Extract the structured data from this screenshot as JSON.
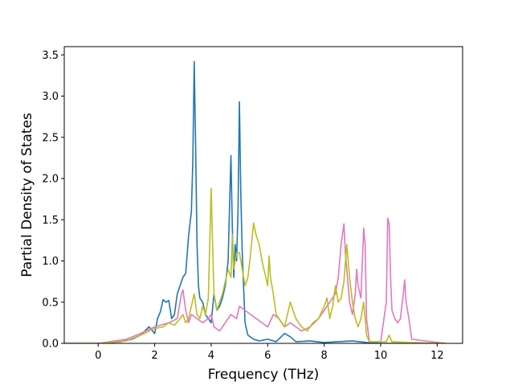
{
  "chart_data": {
    "type": "line",
    "title": "",
    "xlabel": "Frequency (THz)",
    "ylabel": "Partial Density of States",
    "xlim": [
      -1.2,
      12.9
    ],
    "ylim": [
      0,
      3.6
    ],
    "xticks": [
      0,
      2,
      4,
      6,
      8,
      10,
      12
    ],
    "xtick_labels": [
      "0",
      "2",
      "4",
      "6",
      "8",
      "10",
      "12"
    ],
    "yticks": [
      0.0,
      0.5,
      1.0,
      1.5,
      2.0,
      2.5,
      3.0,
      3.5
    ],
    "ytick_labels": [
      "0.0",
      "0.5",
      "1.0",
      "1.5",
      "2.0",
      "2.5",
      "3.0",
      "3.5"
    ],
    "grid": false,
    "legend": "none",
    "series": [
      {
        "color": "#1f77b4",
        "x": [
          -1.2,
          0,
          0.8,
          1.2,
          1.5,
          1.8,
          2.0,
          2.1,
          2.2,
          2.3,
          2.4,
          2.5,
          2.6,
          2.7,
          2.8,
          2.9,
          3.0,
          3.1,
          3.2,
          3.3,
          3.35,
          3.4,
          3.45,
          3.5,
          3.55,
          3.6,
          3.7,
          3.8,
          3.9,
          4.0,
          4.1,
          4.2,
          4.3,
          4.4,
          4.5,
          4.6,
          4.7,
          4.75,
          4.8,
          4.85,
          4.9,
          4.95,
          5.0,
          5.05,
          5.1,
          5.2,
          5.3,
          5.5,
          5.7,
          6.0,
          6.3,
          6.6,
          6.8,
          7.0,
          7.5,
          8.0,
          8.5,
          9.0,
          9.5,
          10.0,
          12.3
        ],
        "y": [
          0,
          0,
          0.02,
          0.05,
          0.1,
          0.2,
          0.12,
          0.3,
          0.38,
          0.53,
          0.5,
          0.52,
          0.3,
          0.35,
          0.6,
          0.7,
          0.8,
          0.85,
          1.3,
          1.6,
          2.2,
          3.42,
          2.4,
          1.2,
          0.7,
          0.55,
          0.5,
          0.35,
          0.3,
          0.25,
          0.6,
          0.4,
          0.45,
          0.55,
          0.7,
          1.0,
          2.28,
          1.4,
          0.8,
          1.2,
          1.0,
          1.6,
          2.93,
          1.8,
          1.1,
          0.25,
          0.1,
          0.05,
          0.03,
          0.05,
          0.02,
          0.12,
          0.08,
          0.02,
          0.03,
          0.01,
          0.02,
          0.03,
          0.01,
          0,
          0
        ]
      },
      {
        "color": "#e377c2",
        "x": [
          -1.2,
          0,
          1.0,
          1.5,
          2.0,
          2.5,
          2.8,
          2.95,
          3.0,
          3.1,
          3.2,
          3.3,
          3.5,
          3.7,
          3.9,
          4.0,
          4.1,
          4.3,
          4.5,
          4.7,
          4.9,
          5.0,
          5.2,
          5.4,
          5.6,
          5.8,
          6.0,
          6.2,
          6.4,
          6.6,
          6.8,
          7.0,
          7.2,
          7.5,
          7.8,
          8.0,
          8.2,
          8.4,
          8.5,
          8.6,
          8.7,
          8.75,
          8.8,
          8.9,
          9.0,
          9.1,
          9.15,
          9.2,
          9.3,
          9.4,
          9.45,
          9.5,
          9.6,
          10.0,
          10.2,
          10.25,
          10.3,
          10.35,
          10.4,
          10.5,
          10.6,
          10.7,
          10.8,
          10.85,
          10.9,
          11.0,
          11.1,
          12.3
        ],
        "y": [
          0,
          0,
          0.05,
          0.12,
          0.2,
          0.25,
          0.3,
          0.6,
          0.65,
          0.4,
          0.25,
          0.35,
          0.3,
          0.25,
          0.3,
          0.35,
          0.2,
          0.15,
          0.25,
          0.35,
          0.3,
          0.45,
          0.4,
          0.35,
          0.3,
          0.25,
          0.2,
          0.35,
          0.3,
          0.2,
          0.25,
          0.2,
          0.15,
          0.2,
          0.3,
          0.4,
          0.5,
          0.6,
          0.8,
          1.2,
          1.45,
          1.1,
          0.9,
          0.5,
          0.35,
          0.6,
          0.9,
          0.7,
          0.55,
          1.4,
          1.2,
          0.3,
          0.02,
          0.02,
          0.5,
          1.52,
          1.45,
          0.8,
          0.4,
          0.3,
          0.25,
          0.3,
          0.6,
          0.77,
          0.5,
          0.3,
          0.05,
          0
        ]
      },
      {
        "color": "#bcbd22",
        "x": [
          -1.2,
          0,
          1.0,
          1.5,
          2.0,
          2.3,
          2.5,
          2.7,
          2.9,
          3.0,
          3.1,
          3.2,
          3.3,
          3.4,
          3.5,
          3.6,
          3.7,
          3.8,
          3.9,
          4.0,
          4.05,
          4.1,
          4.2,
          4.3,
          4.4,
          4.5,
          4.6,
          4.7,
          4.75,
          4.8,
          4.9,
          5.0,
          5.1,
          5.2,
          5.3,
          5.4,
          5.5,
          5.6,
          5.7,
          5.8,
          5.9,
          6.0,
          6.05,
          6.1,
          6.2,
          6.3,
          6.5,
          6.6,
          6.8,
          7.0,
          7.2,
          7.4,
          7.6,
          7.8,
          8.0,
          8.1,
          8.2,
          8.3,
          8.4,
          8.5,
          8.6,
          8.7,
          8.8,
          8.9,
          9.0,
          9.1,
          9.2,
          9.3,
          9.4,
          9.5,
          9.6,
          10.2,
          10.3,
          10.4,
          11.0,
          12.3
        ],
        "y": [
          0,
          0,
          0.03,
          0.1,
          0.18,
          0.2,
          0.25,
          0.22,
          0.3,
          0.35,
          0.25,
          0.3,
          0.45,
          0.6,
          0.35,
          0.3,
          0.45,
          0.35,
          0.55,
          1.88,
          1.2,
          0.6,
          0.4,
          0.5,
          0.6,
          0.75,
          0.9,
          0.8,
          1.32,
          0.9,
          1.1,
          1.1,
          0.9,
          0.7,
          0.8,
          1.1,
          1.46,
          1.3,
          1.2,
          1.0,
          0.85,
          0.7,
          1.06,
          0.8,
          0.6,
          0.35,
          0.25,
          0.2,
          0.5,
          0.3,
          0.2,
          0.15,
          0.25,
          0.3,
          0.45,
          0.55,
          0.3,
          0.45,
          0.7,
          0.5,
          0.55,
          0.75,
          1.2,
          0.8,
          0.5,
          0.3,
          0.2,
          0.3,
          0.5,
          0.1,
          0.02,
          0.02,
          0.1,
          0.02,
          0.01,
          0
        ]
      }
    ]
  }
}
